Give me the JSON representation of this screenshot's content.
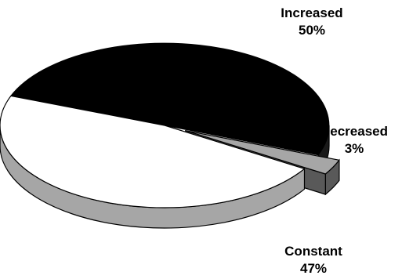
{
  "chart_data": {
    "type": "pie",
    "style": "3d-exploded",
    "slices": [
      {
        "label": "Increased",
        "value": 50,
        "display": "50%",
        "color": "#000000",
        "side_color": "#1a1a1a"
      },
      {
        "label": "Decreased",
        "value": 3,
        "display": "3%",
        "color": "#a6a6a6",
        "side_color": "#595959",
        "exploded": true
      },
      {
        "label": "Constant",
        "value": 47,
        "display": "47%",
        "color": "#ffffff",
        "side_color": "#a6a6a6"
      }
    ]
  }
}
